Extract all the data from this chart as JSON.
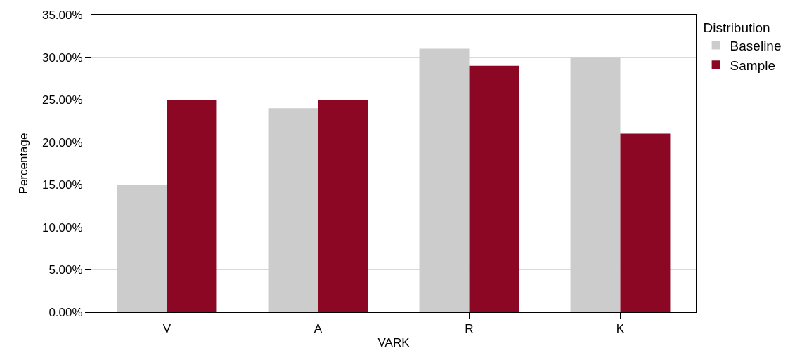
{
  "chart_data": {
    "type": "bar",
    "xlabel": "VARK",
    "ylabel": "Percentage",
    "legend_title": "Distribution",
    "categories": [
      "V",
      "A",
      "R",
      "K"
    ],
    "series": [
      {
        "name": "Baseline",
        "color": "#cccccc",
        "values": [
          15,
          24,
          31,
          30
        ]
      },
      {
        "name": "Sample",
        "color": "#8b0724",
        "values": [
          25,
          25,
          29,
          21
        ]
      }
    ],
    "ylim": [
      0,
      35
    ],
    "yticks": [
      {
        "value": 0,
        "label": "0.00%"
      },
      {
        "value": 5,
        "label": "5.00%"
      },
      {
        "value": 10,
        "label": "10.00%"
      },
      {
        "value": 15,
        "label": "15.00%"
      },
      {
        "value": 20,
        "label": "20.00%"
      },
      {
        "value": 25,
        "label": "25.00%"
      },
      {
        "value": 30,
        "label": "30.00%"
      },
      {
        "value": 35,
        "label": "35.00%"
      }
    ],
    "grid": "y",
    "legend": "top right"
  }
}
